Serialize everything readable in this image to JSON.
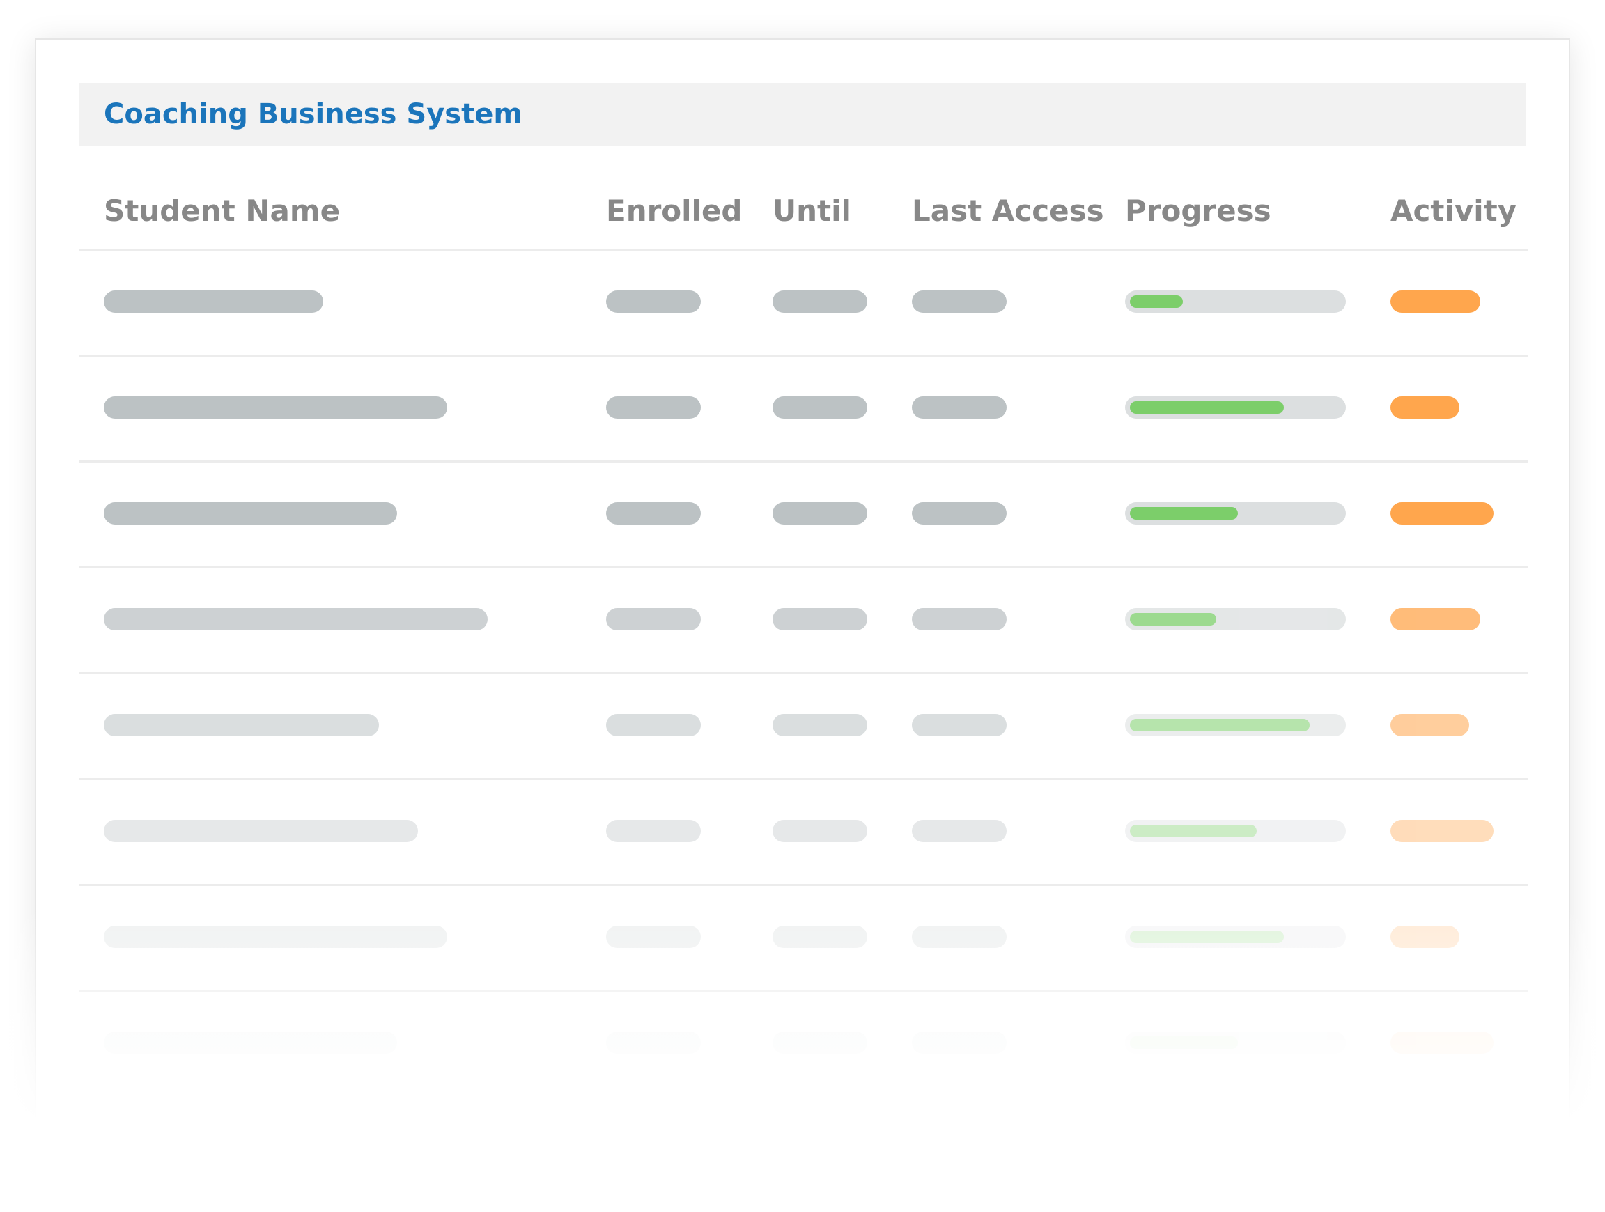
{
  "app": {
    "title": "Coaching Business System"
  },
  "table": {
    "columns": [
      "Student Name",
      "Enrolled",
      "Until",
      "Last Access",
      "Progress",
      "Activity"
    ],
    "rows": [
      {
        "progress": 0.25,
        "activity": 0.55
      },
      {
        "progress": 0.73,
        "activity": 0.42
      },
      {
        "progress": 0.51,
        "activity": 0.63
      },
      {
        "progress": 0.41,
        "activity": 0.55
      },
      {
        "progress": 0.85,
        "activity": 0.48
      },
      {
        "progress": 0.6,
        "activity": 0.63
      },
      {
        "progress": 0.73,
        "activity": 0.42
      },
      {
        "progress": 0.51,
        "activity": 0.63
      }
    ]
  },
  "colors": {
    "title": "#1b75bb",
    "header_text": "#888888",
    "placeholder": "#bcc2c4",
    "progress_fill": "#7cce6a",
    "activity": "#ffa64d"
  }
}
